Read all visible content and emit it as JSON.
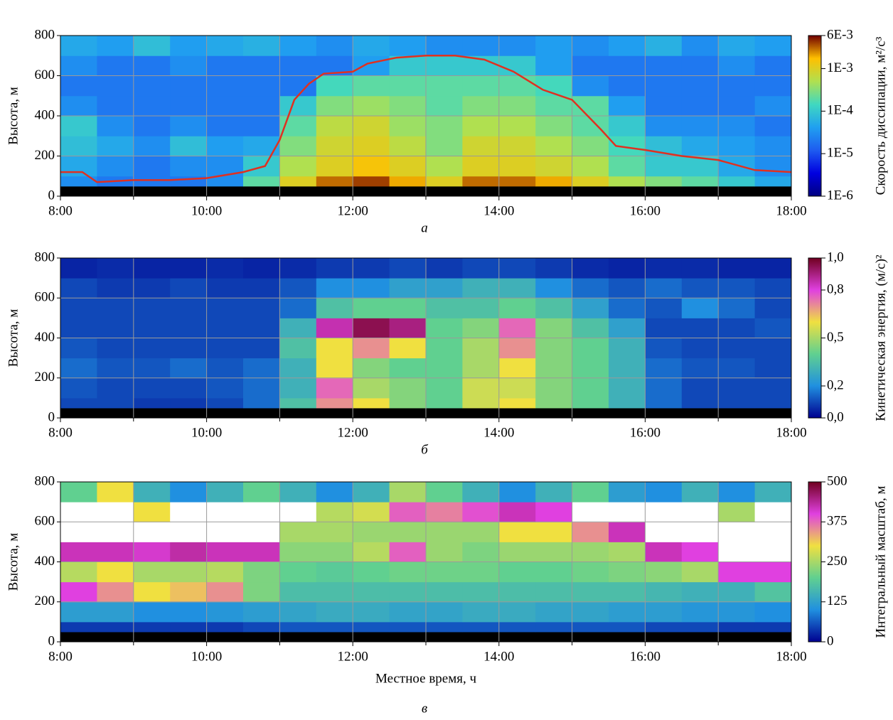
{
  "chart_data": [
    {
      "type": "heatmap",
      "caption": "а",
      "ylabel": "Высота, м",
      "xlim": [
        8,
        18
      ],
      "ylim": [
        0,
        800
      ],
      "xticks": [
        {
          "value": 8,
          "label": "8:00"
        },
        {
          "value": 10,
          "label": "10:00"
        },
        {
          "value": 12,
          "label": "12:00"
        },
        {
          "value": 14,
          "label": "14:00"
        },
        {
          "value": 16,
          "label": "16:00"
        },
        {
          "value": 18,
          "label": "18:00"
        }
      ],
      "minor_xticks": [
        9,
        11,
        13,
        15,
        17
      ],
      "yticks": [
        0,
        200,
        400,
        600,
        800
      ],
      "grid": true,
      "x_bins": [
        8,
        8.5,
        9,
        9.5,
        10,
        10.5,
        11,
        11.5,
        12,
        12.5,
        13,
        13.5,
        14,
        14.5,
        15,
        15.5,
        16,
        16.5,
        17,
        17.5,
        18
      ],
      "y_bins": [
        50,
        100,
        200,
        300,
        400,
        500,
        600,
        700,
        800
      ],
      "values": [
        [
          3e-05,
          2e-05,
          2e-05,
          2e-05,
          3e-05,
          0.0002,
          0.001,
          0.003,
          0.004,
          0.002,
          0.001,
          0.003,
          0.003,
          0.002,
          0.001,
          0.0005,
          0.0003,
          0.0002,
          0.0001,
          5e-05
        ],
        [
          5e-05,
          3e-05,
          2e-05,
          3e-05,
          3e-05,
          0.0001,
          0.0005,
          0.001,
          0.0015,
          0.001,
          0.0005,
          0.001,
          0.001,
          0.0008,
          0.0005,
          0.0002,
          0.0001,
          0.0001,
          5e-05,
          3e-05
        ],
        [
          8e-05,
          5e-05,
          3e-05,
          8e-05,
          4e-05,
          5e-05,
          0.0003,
          0.0008,
          0.001,
          0.0006,
          0.0003,
          0.0008,
          0.0008,
          0.0005,
          0.0003,
          0.00015,
          8e-05,
          5e-05,
          4e-05,
          3e-05
        ],
        [
          0.0001,
          3e-05,
          2e-05,
          3e-05,
          2e-05,
          2e-05,
          0.0002,
          0.0006,
          0.0008,
          0.0004,
          0.0003,
          0.0005,
          0.0005,
          0.0003,
          0.0002,
          0.0001,
          3e-05,
          3e-05,
          3e-05,
          2e-05
        ],
        [
          3e-05,
          2e-05,
          2e-05,
          2e-05,
          2e-05,
          2e-05,
          0.0001,
          0.0003,
          0.0004,
          0.0003,
          0.0002,
          0.0003,
          0.0003,
          0.0002,
          0.0002,
          4e-05,
          2e-05,
          2e-05,
          2e-05,
          3e-05
        ],
        [
          2e-05,
          2e-05,
          2e-05,
          2e-05,
          2e-05,
          2e-05,
          2e-05,
          0.00015,
          0.0002,
          0.0002,
          0.0002,
          0.0002,
          0.0002,
          0.00015,
          3e-05,
          2e-05,
          2e-05,
          2e-05,
          2e-05,
          2e-05
        ],
        [
          3e-05,
          2e-05,
          2e-05,
          3e-05,
          2e-05,
          2e-05,
          2e-05,
          2e-05,
          4e-05,
          0.0001,
          0.0001,
          0.0001,
          0.0001,
          4e-05,
          2e-05,
          2e-05,
          2e-05,
          2e-05,
          3e-05,
          2e-05
        ],
        [
          5e-05,
          4e-05,
          8e-05,
          4e-05,
          5e-05,
          6e-05,
          4e-05,
          3e-05,
          5e-05,
          4e-05,
          3e-05,
          3e-05,
          3e-05,
          4e-05,
          3e-05,
          4e-05,
          6e-05,
          3e-05,
          5e-05,
          4e-05
        ]
      ],
      "line": {
        "color": "#e03020",
        "x": [
          8,
          8.3,
          8.5,
          9,
          9.5,
          10,
          10.5,
          10.8,
          11,
          11.2,
          11.4,
          11.6,
          12,
          12.2,
          12.6,
          13,
          13.4,
          13.8,
          14.2,
          14.6,
          15,
          15.4,
          15.6,
          16,
          16.5,
          17,
          17.5,
          18
        ],
        "y": [
          120,
          120,
          70,
          80,
          80,
          90,
          120,
          150,
          280,
          480,
          560,
          610,
          620,
          660,
          690,
          700,
          700,
          680,
          620,
          530,
          480,
          330,
          250,
          230,
          200,
          180,
          130,
          120
        ]
      },
      "colorbar": {
        "label": "Скорость диссипации, м²/с³",
        "log": true,
        "lim": [
          1e-06,
          0.006
        ],
        "ticks": [
          {
            "value": 0.006,
            "label": "6E-3"
          },
          {
            "value": 0.001,
            "label": "1E-3"
          },
          {
            "value": 0.0001,
            "label": "1E-4"
          },
          {
            "value": 1e-05,
            "label": "1E-5"
          },
          {
            "value": 1e-06,
            "label": "1E-6"
          }
        ],
        "colormap": [
          "#000080",
          "#0000e0",
          "#1e5cf0",
          "#20a0f0",
          "#40d8c0",
          "#b0e050",
          "#ffc000",
          "#700000"
        ]
      }
    },
    {
      "type": "heatmap",
      "caption": "б",
      "ylabel": "Высота, м",
      "xlim": [
        8,
        18
      ],
      "ylim": [
        0,
        800
      ],
      "xticks": [
        {
          "value": 8,
          "label": "8:00"
        },
        {
          "value": 10,
          "label": "10:00"
        },
        {
          "value": 12,
          "label": "12:00"
        },
        {
          "value": 14,
          "label": "14:00"
        },
        {
          "value": 16,
          "label": "16:00"
        },
        {
          "value": 18,
          "label": "18:00"
        }
      ],
      "minor_xticks": [
        9,
        11,
        13,
        15,
        17
      ],
      "yticks": [
        0,
        200,
        400,
        600,
        800
      ],
      "grid": true,
      "x_bins": [
        8,
        8.5,
        9,
        9.5,
        10,
        10.5,
        11,
        11.5,
        12,
        12.5,
        13,
        13.5,
        14,
        14.5,
        15,
        15.5,
        16,
        16.5,
        17,
        17.5,
        18
      ],
      "y_bins": [
        50,
        100,
        200,
        300,
        400,
        500,
        600,
        700,
        800
      ],
      "values": [
        [
          0.1,
          0.1,
          0.08,
          0.08,
          0.1,
          0.15,
          0.35,
          0.7,
          0.6,
          0.45,
          0.4,
          0.55,
          0.6,
          0.45,
          0.4,
          0.3,
          0.15,
          0.1,
          0.1,
          0.1
        ],
        [
          0.12,
          0.1,
          0.1,
          0.1,
          0.12,
          0.15,
          0.3,
          0.75,
          0.5,
          0.45,
          0.4,
          0.55,
          0.55,
          0.45,
          0.4,
          0.3,
          0.15,
          0.1,
          0.1,
          0.1
        ],
        [
          0.15,
          0.12,
          0.12,
          0.15,
          0.12,
          0.15,
          0.3,
          0.6,
          0.45,
          0.4,
          0.4,
          0.5,
          0.6,
          0.45,
          0.4,
          0.3,
          0.15,
          0.12,
          0.12,
          0.1
        ],
        [
          0.12,
          0.1,
          0.1,
          0.1,
          0.1,
          0.1,
          0.35,
          0.6,
          0.7,
          0.6,
          0.4,
          0.5,
          0.7,
          0.45,
          0.4,
          0.3,
          0.12,
          0.1,
          0.1,
          0.1
        ],
        [
          0.1,
          0.1,
          0.1,
          0.1,
          0.1,
          0.1,
          0.3,
          0.85,
          0.95,
          0.9,
          0.4,
          0.45,
          0.75,
          0.45,
          0.35,
          0.25,
          0.1,
          0.1,
          0.1,
          0.12
        ],
        [
          0.1,
          0.1,
          0.1,
          0.1,
          0.1,
          0.1,
          0.15,
          0.35,
          0.4,
          0.4,
          0.35,
          0.35,
          0.4,
          0.35,
          0.25,
          0.15,
          0.12,
          0.2,
          0.15,
          0.1
        ],
        [
          0.1,
          0.08,
          0.08,
          0.1,
          0.08,
          0.08,
          0.12,
          0.2,
          0.2,
          0.25,
          0.25,
          0.3,
          0.3,
          0.2,
          0.15,
          0.12,
          0.15,
          0.12,
          0.12,
          0.1
        ],
        [
          0.05,
          0.06,
          0.05,
          0.05,
          0.06,
          0.05,
          0.06,
          0.08,
          0.08,
          0.1,
          0.08,
          0.1,
          0.1,
          0.08,
          0.06,
          0.05,
          0.06,
          0.06,
          0.05,
          0.05
        ]
      ],
      "colorbar": {
        "label": "Кинетическая энергия, (м/с)²",
        "log": false,
        "lim": [
          0,
          1
        ],
        "ticks": [
          {
            "value": 1,
            "label": "1,0"
          },
          {
            "value": 0.8,
            "label": "0,8"
          },
          {
            "value": 0.5,
            "label": "0,5"
          },
          {
            "value": 0.2,
            "label": "0,2"
          },
          {
            "value": 0,
            "label": "0,0"
          }
        ],
        "colormap": [
          "#000090",
          "#2090e0",
          "#60d090",
          "#f0e040",
          "#e040e0",
          "#700020"
        ]
      }
    },
    {
      "type": "heatmap",
      "caption": "в",
      "ylabel": "Высота, м",
      "xlabel": "Местное время, ч",
      "xlim": [
        8,
        18
      ],
      "ylim": [
        0,
        800
      ],
      "xticks": [
        {
          "value": 8,
          "label": "8:00"
        },
        {
          "value": 10,
          "label": "10:00"
        },
        {
          "value": 12,
          "label": "12:00"
        },
        {
          "value": 14,
          "label": "14:00"
        },
        {
          "value": 16,
          "label": "16:00"
        },
        {
          "value": 18,
          "label": "18:00"
        }
      ],
      "minor_xticks": [
        9,
        11,
        13,
        15,
        17
      ],
      "yticks": [
        0,
        200,
        400,
        600,
        800
      ],
      "grid": true,
      "x_bins": [
        8,
        8.5,
        9,
        9.5,
        10,
        10.5,
        11,
        11.5,
        12,
        12.5,
        13,
        13.5,
        14,
        14.5,
        15,
        15.5,
        16,
        16.5,
        17,
        17.5,
        18
      ],
      "y_bins": [
        50,
        100,
        200,
        300,
        400,
        500,
        600,
        700,
        800
      ],
      "values": [
        [
          40,
          40,
          40,
          40,
          40,
          50,
          60,
          60,
          60,
          60,
          60,
          60,
          60,
          60,
          60,
          60,
          50,
          50,
          40,
          40
        ],
        [
          120,
          120,
          100,
          100,
          110,
          120,
          130,
          140,
          140,
          130,
          130,
          140,
          140,
          130,
          130,
          120,
          120,
          110,
          110,
          100
        ],
        [
          400,
          350,
          300,
          320,
          350,
          220,
          170,
          170,
          170,
          170,
          170,
          170,
          170,
          170,
          170,
          170,
          160,
          150,
          150,
          180
        ],
        [
          260,
          300,
          250,
          250,
          260,
          220,
          200,
          190,
          200,
          210,
          210,
          210,
          200,
          200,
          210,
          220,
          230,
          250,
          400,
          400
        ],
        [
          420,
          420,
          410,
          430,
          420,
          420,
          230,
          230,
          260,
          380,
          240,
          220,
          240,
          240,
          240,
          250,
          420,
          400,
          null,
          null
        ],
        [
          null,
          null,
          null,
          null,
          null,
          null,
          250,
          250,
          240,
          240,
          240,
          240,
          300,
          300,
          350,
          420,
          null,
          null,
          null,
          null
        ],
        [
          null,
          null,
          300,
          null,
          null,
          null,
          null,
          260,
          280,
          380,
          360,
          390,
          420,
          400,
          null,
          null,
          null,
          null,
          250,
          null
        ],
        [
          200,
          300,
          150,
          100,
          150,
          200,
          150,
          100,
          150,
          250,
          200,
          150,
          100,
          150,
          200,
          120,
          100,
          150,
          100,
          150
        ]
      ],
      "colorbar": {
        "label": "Интегральный масштаб, м",
        "log": false,
        "lim": [
          0,
          500
        ],
        "ticks": [
          500,
          375,
          250,
          125,
          0
        ],
        "colormap": [
          "#000090",
          "#2090e0",
          "#60d090",
          "#f0e040",
          "#e040e0",
          "#700020"
        ]
      }
    }
  ]
}
